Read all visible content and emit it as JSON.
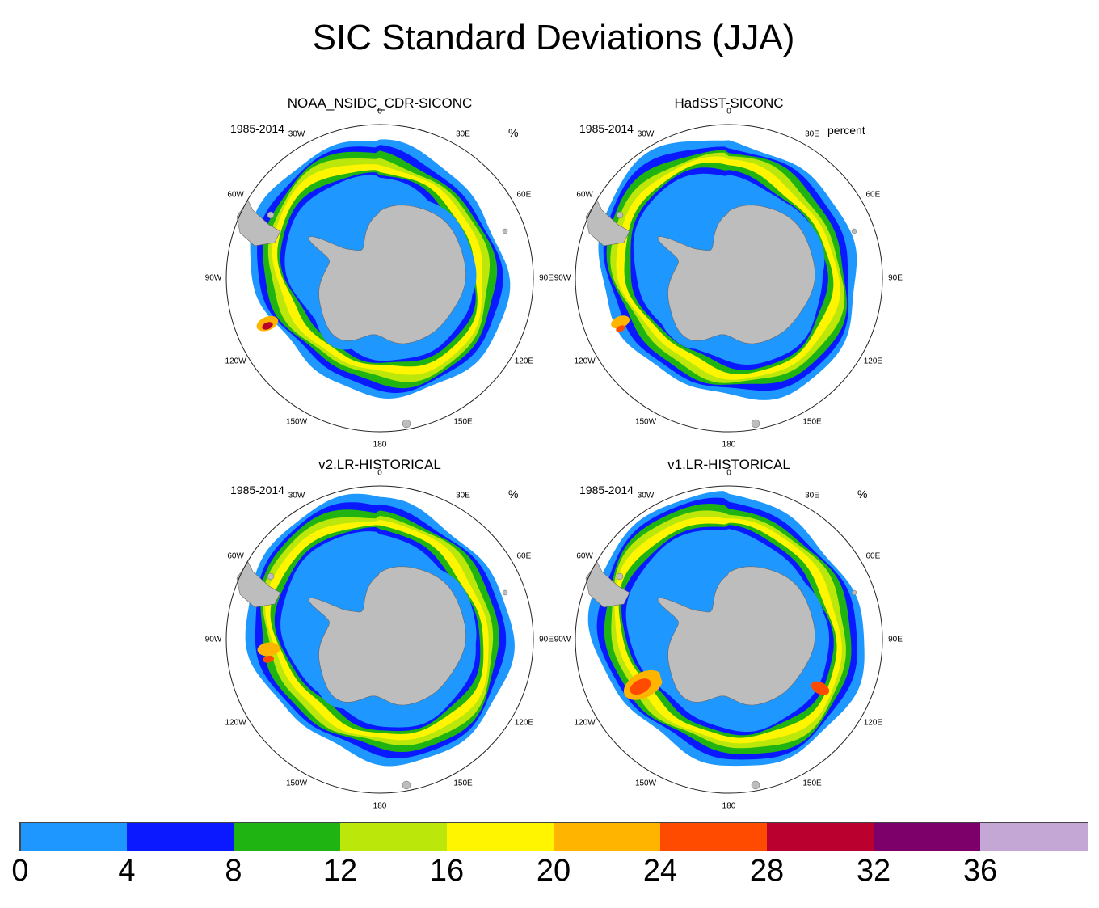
{
  "figure": {
    "title": "SIC Standard Deviations (JJA)"
  },
  "panels": [
    {
      "title": "NOAA_NSIDC_CDR-SICONC",
      "period": "1985-2014",
      "units": "%"
    },
    {
      "title": "HadSST-SICONC",
      "period": "1985-2014",
      "units": "percent"
    },
    {
      "title": "v2.LR-HISTORICAL",
      "period": "1985-2014",
      "units": "%"
    },
    {
      "title": "v1.LR-HISTORICAL",
      "period": "1985-2014",
      "units": "%"
    }
  ],
  "longitude_labels": [
    "0",
    "30E",
    "60E",
    "90E",
    "120E",
    "150E",
    "180",
    "150W",
    "120W",
    "90W",
    "60W",
    "30W"
  ],
  "colorbar": {
    "ticks": [
      "0",
      "4",
      "8",
      "12",
      "16",
      "20",
      "24",
      "28",
      "32",
      "36"
    ],
    "colors": [
      "#1e98ff",
      "#0a19ff",
      "#1fb412",
      "#bbe80a",
      "#fff500",
      "#ffb400",
      "#ff4b00",
      "#b9002f",
      "#7d006a",
      "#c5a7d5"
    ]
  },
  "palette": {
    "land": "#bdbdbd",
    "ocean": "#ffffff"
  }
}
